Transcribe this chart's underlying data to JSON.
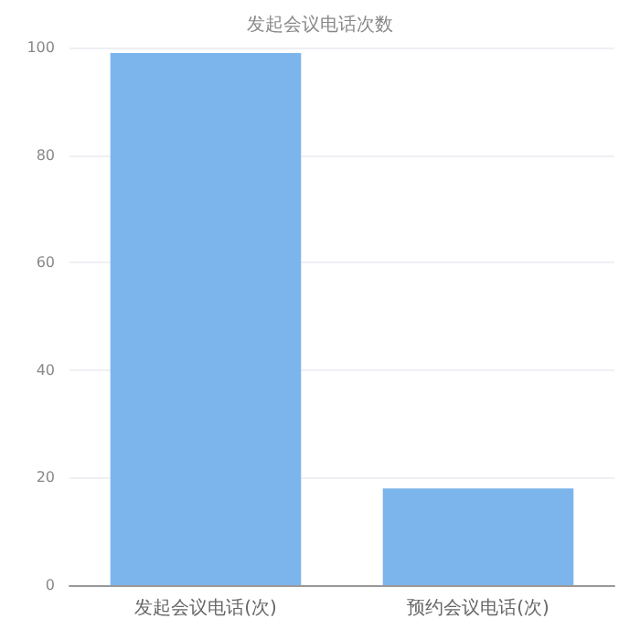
{
  "chart_data": {
    "type": "bar",
    "title": "发起会议电话次数",
    "categories": [
      "发起会议电话(次)",
      "预约会议电话(次)"
    ],
    "values": [
      99,
      18
    ],
    "color": "#7cb5ec",
    "ylim": [
      0,
      100
    ],
    "yticks": [
      0,
      20,
      40,
      60,
      80,
      100
    ],
    "grid": "y"
  }
}
